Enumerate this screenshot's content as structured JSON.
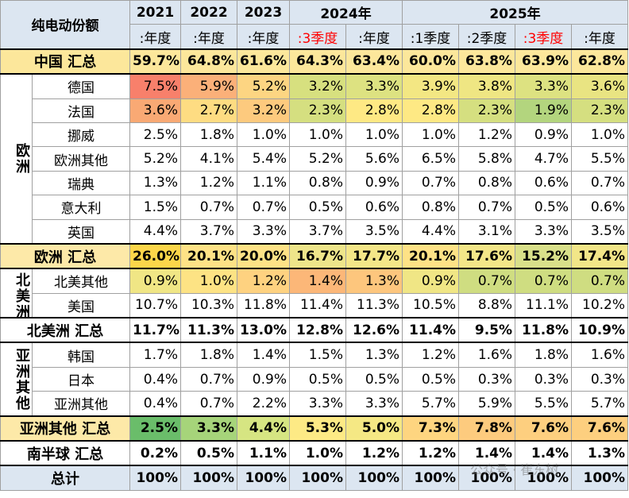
{
  "header": {
    "title": "纯电动份额",
    "years": [
      {
        "label": "2021",
        "periods": [
          ":年度"
        ]
      },
      {
        "label": "2022",
        "periods": [
          ":年度"
        ]
      },
      {
        "label": "2023",
        "periods": [
          ":年度"
        ]
      },
      {
        "label": "2024年",
        "periods": [
          ":3季度",
          ":年度"
        ]
      },
      {
        "label": "2025年",
        "periods": [
          ":1季度",
          ":2季度",
          ":3季度",
          ":年度"
        ]
      }
    ]
  },
  "rows": [
    {
      "label": "中国 汇总",
      "label_fill": "#fce79b",
      "cells": [
        "59.7%",
        "64.8%",
        "61.6%",
        "64.3%",
        "63.4%",
        "60.0%",
        "63.8%",
        "63.9%",
        "62.8%"
      ],
      "fills": [
        "#fce79b",
        "#fce79b",
        "#fce79b",
        "#fce79b",
        "#fce79b",
        "#fce79b",
        "#fce79b",
        "#fce79b",
        "#fce79b"
      ]
    },
    {
      "group": "欧洲",
      "rows": [
        {
          "label": "德国",
          "cells": [
            "7.5%",
            "5.9%",
            "5.2%",
            "3.2%",
            "3.3%",
            "3.9%",
            "3.8%",
            "3.3%",
            "3.6%"
          ],
          "fills": [
            "#f8806b",
            "#fbb079",
            "#fdd582",
            "#d7e07f",
            "#dde281",
            "#f3e783",
            "#efe683",
            "#dde281",
            "#e9e482"
          ]
        },
        {
          "label": "法国",
          "cells": [
            "3.6%",
            "2.7%",
            "3.2%",
            "2.3%",
            "2.8%",
            "2.8%",
            "2.3%",
            "1.9%",
            "2.3%"
          ],
          "fills": [
            "#f9a974",
            "#fedc82",
            "#fdca7e",
            "#d5df80",
            "#fee984",
            "#fee984",
            "#d5df80",
            "#b3d57e",
            "#d5df80"
          ]
        },
        {
          "label": "挪威",
          "cells": [
            "2.5%",
            "1.8%",
            "1.0%",
            "1.0%",
            "1.0%",
            "1.0%",
            "1.2%",
            "0.9%",
            "1.0%"
          ]
        },
        {
          "label": "欧洲其他",
          "cells": [
            "5.2%",
            "4.1%",
            "5.4%",
            "5.2%",
            "5.6%",
            "6.5%",
            "5.8%",
            "4.7%",
            "5.5%"
          ]
        },
        {
          "label": "瑞典",
          "cells": [
            "1.3%",
            "1.2%",
            "1.1%",
            "0.8%",
            "0.9%",
            "0.7%",
            "0.8%",
            "0.6%",
            "0.7%"
          ]
        },
        {
          "label": "意大利",
          "cells": [
            "1.5%",
            "0.7%",
            "0.7%",
            "0.5%",
            "0.6%",
            "0.8%",
            "0.7%",
            "0.5%",
            "0.6%"
          ]
        },
        {
          "label": "英国",
          "cells": [
            "4.4%",
            "3.7%",
            "3.3%",
            "3.7%",
            "3.5%",
            "4.4%",
            "3.1%",
            "3.3%",
            "3.5%"
          ]
        }
      ]
    },
    {
      "label": "欧洲 汇总",
      "label_fill": "#fde9a8",
      "cells": [
        "26.0%",
        "20.1%",
        "20.0%",
        "16.7%",
        "17.7%",
        "20.1%",
        "17.6%",
        "15.2%",
        "17.4%"
      ],
      "fills": [
        "#fcd64a",
        "#fee286",
        "#fee286",
        "#eee58a",
        "#f4e688",
        "#fee286",
        "#f3e688",
        "#d9e08a",
        "#f2e688"
      ]
    },
    {
      "group": "北美洲",
      "rows": [
        {
          "label": "北美其他",
          "cells": [
            "0.9%",
            "1.0%",
            "1.2%",
            "1.4%",
            "1.3%",
            "0.9%",
            "0.7%",
            "0.7%",
            "0.7%"
          ],
          "fills": [
            "#f0e685",
            "#fde384",
            "#fed280",
            "#fcb778",
            "#fdc67d",
            "#f0e685",
            "#cfdd81",
            "#cfdd81",
            "#cfdd81"
          ]
        },
        {
          "label": "美国",
          "cells": [
            "10.7%",
            "10.3%",
            "11.8%",
            "11.4%",
            "11.3%",
            "10.5%",
            "8.8%",
            "11.1%",
            "10.2%"
          ]
        }
      ]
    },
    {
      "label": "北美洲 汇总",
      "cells": [
        "11.7%",
        "11.3%",
        "13.0%",
        "12.8%",
        "12.6%",
        "11.4%",
        "9.5%",
        "11.8%",
        "10.9%"
      ]
    },
    {
      "group": "亚洲其他",
      "rows": [
        {
          "label": "韩国",
          "cells": [
            "1.7%",
            "1.8%",
            "1.4%",
            "1.5%",
            "1.3%",
            "1.2%",
            "1.6%",
            "1.8%",
            "1.6%"
          ]
        },
        {
          "label": "日本",
          "cells": [
            "0.4%",
            "0.7%",
            "0.9%",
            "0.5%",
            "0.5%",
            "0.5%",
            "0.3%",
            "0.3%",
            "0.3%"
          ]
        },
        {
          "label": "亚洲其他",
          "cells": [
            "0.4%",
            "0.7%",
            "2.2%",
            "3.3%",
            "3.3%",
            "5.7%",
            "5.9%",
            "5.5%",
            "5.7%"
          ]
        }
      ]
    },
    {
      "label": "亚洲其他 汇总",
      "label_fill": "#fde9a8",
      "cells": [
        "2.5%",
        "3.3%",
        "4.4%",
        "5.3%",
        "5.0%",
        "7.3%",
        "7.8%",
        "7.6%",
        "7.6%"
      ],
      "fills": [
        "#6abd6a",
        "#a6d47a",
        "#d6e582",
        "#fdea85",
        "#f5e884",
        "#fed580",
        "#fdcb7e",
        "#fdcf7f",
        "#fdcf7f"
      ]
    },
    {
      "label": "南半球 汇总",
      "cells": [
        "0.2%",
        "0.5%",
        "1.1%",
        "1.0%",
        "1.2%",
        "1.2%",
        "1.4%",
        "1.4%",
        "1.3%"
      ]
    },
    {
      "label": "总计",
      "label_fill": "#dce6f1",
      "cells": [
        "100%",
        "100%",
        "100%",
        "100%",
        "100%",
        "100%",
        "100%",
        "100%",
        "100%"
      ],
      "fills": [
        "#dce6f1",
        "#dce6f1",
        "#dce6f1",
        "#dce6f1",
        "#dce6f1",
        "#dce6f1",
        "#dce6f1",
        "#dce6f1",
        "#dce6f1"
      ]
    }
  ],
  "watermark": "公众号 · 崔东树"
}
